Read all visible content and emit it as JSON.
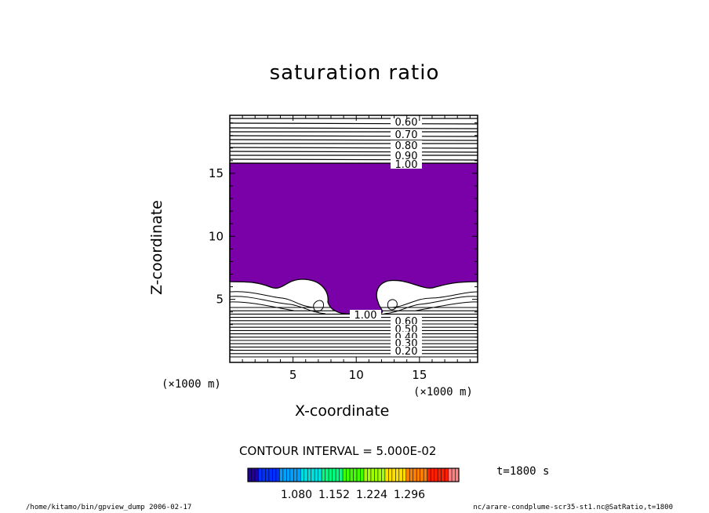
{
  "chart_data": {
    "type": "contour",
    "title": "saturation ratio",
    "xlabel": "X-coordinate",
    "ylabel": "Z-coordinate",
    "x_unit_label_left": "(×1000 m)",
    "x_unit_label_right": "(×1000 m)",
    "xlim": [
      0,
      19.6
    ],
    "ylim": [
      0,
      19.6
    ],
    "x_ticks": [
      5,
      10,
      15
    ],
    "y_ticks": [
      5,
      10,
      15
    ],
    "contour_labels_upper": [
      "0.60",
      "0.70",
      "0.80",
      "0.90",
      "1.00"
    ],
    "contour_labels_lower": [
      "1.00",
      "0.60",
      "0.50",
      "0.40",
      "0.30",
      "0.20"
    ],
    "filled_region": {
      "color": "#7a00a8",
      "description_value": "saturation ratio > 1.00",
      "top_z": 15.8,
      "bottom_z_edges": 6.4,
      "plume_gap_x": [
        8.2,
        12.4
      ]
    },
    "contour_interval_label": "CONTOUR INTERVAL = 5.000E-02",
    "colorbar": {
      "ticks": [
        "1.080",
        "1.152",
        "1.224",
        "1.296"
      ],
      "colors": [
        "#2000a0",
        "#0030ff",
        "#00a0ff",
        "#00e0e0",
        "#00ff80",
        "#40ff00",
        "#a0ff00",
        "#ffe000",
        "#ff8000",
        "#ff2000",
        "#ff8080"
      ]
    },
    "time_label": "t=1800 s"
  },
  "footer": {
    "left": "/home/kitamo/bin/gpview_dump  2006-02-17",
    "right": "nc/arare-condplume-scr35-st1.nc@SatRatio,t=1800"
  }
}
